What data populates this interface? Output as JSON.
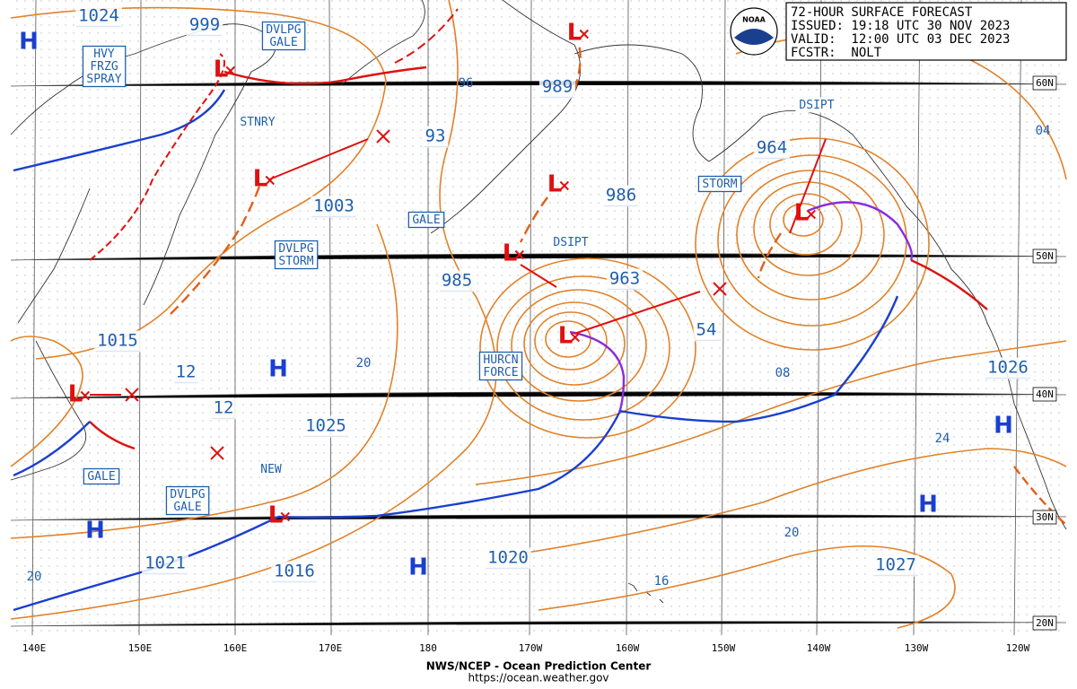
{
  "header": {
    "lines": [
      "72-HOUR SURFACE FORECAST",
      "ISSUED: 19:18 UTC 30 NOV 2023",
      "VALID:  12:00 UTC 03 DEC 2023",
      "FCSTR:  NOLT"
    ],
    "logo": "NOAA"
  },
  "footer": {
    "agency": "NWS/NCEP - Ocean Prediction Center",
    "url": "https://ocean.weather.gov"
  },
  "longitude_labels": [
    "140E",
    "150E",
    "160E",
    "170E",
    "180",
    "170W",
    "160W",
    "150W",
    "140W",
    "130W",
    "120W"
  ],
  "latitude_labels": [
    "60N",
    "50N",
    "40N",
    "30N",
    "20N"
  ],
  "pressure_labels": [
    "1024",
    "999",
    "1003",
    "93",
    "985",
    "963",
    "54",
    "986",
    "989",
    "964",
    "1015",
    "12",
    "12",
    "1025",
    "1021",
    "1016",
    "1020",
    "1027",
    "1026"
  ],
  "warnings": [
    [
      "HVY",
      "FRZG",
      "SPRAY"
    ],
    [
      "DVLPG",
      "GALE"
    ],
    [
      "STNRY"
    ],
    [
      "GALE"
    ],
    [
      "DVLPG",
      "STORM"
    ],
    [
      "DSIPT"
    ],
    [
      "HURCN",
      "FORCE"
    ],
    [
      "STORM"
    ],
    [
      "DSIPT"
    ],
    [
      "GALE"
    ],
    [
      "DVLPG",
      "GALE"
    ],
    [
      "NEW"
    ]
  ],
  "isobar_labels": [
    "96",
    "20",
    "08",
    "24",
    "20",
    "16",
    "04",
    "20"
  ],
  "highs": [
    "H",
    "H",
    "H",
    "H",
    "H",
    "H"
  ],
  "lows": [
    "L",
    "L",
    "L",
    "L",
    "L",
    "L",
    "L",
    "L",
    "L"
  ]
}
